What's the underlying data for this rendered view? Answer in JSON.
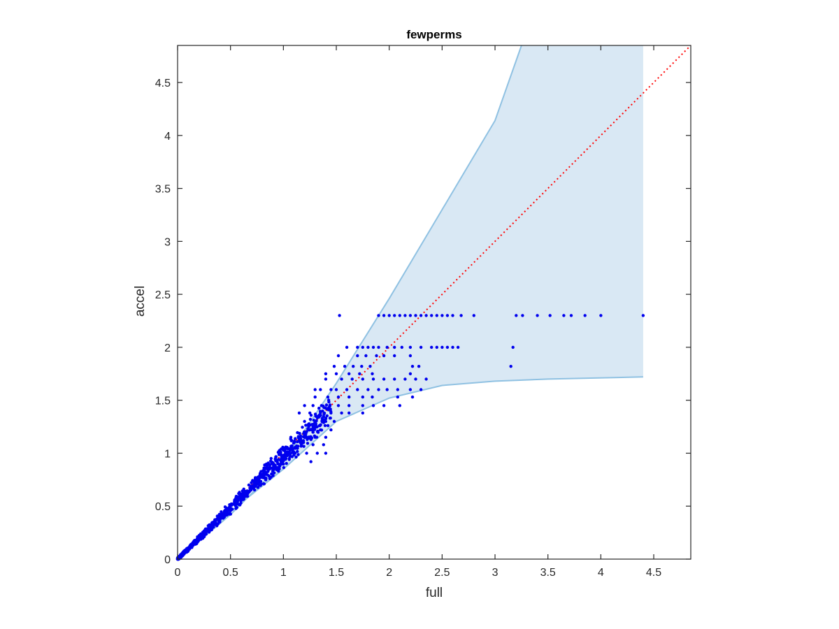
{
  "chart_data": {
    "type": "scatter",
    "title": "fewperms",
    "xlabel": "full",
    "ylabel": "accel",
    "xlim": [
      0,
      4.85
    ],
    "ylim": [
      0,
      4.85
    ],
    "xticks": [
      "0",
      "0.5",
      "1",
      "1.5",
      "2",
      "2.5",
      "3",
      "3.5",
      "4",
      "4.5"
    ],
    "yticks": [
      "0",
      "0.5",
      "1",
      "1.5",
      "2",
      "2.5",
      "3",
      "3.5",
      "4",
      "4.5"
    ],
    "grid": false,
    "colors": {
      "points": "#0000ee",
      "band_fill": "#d9e8f4",
      "band_edge": "#8fc1e2",
      "identity_line": "#ff0000",
      "axes": "#262626"
    },
    "identity_line": {
      "style": "dotted",
      "from": [
        0,
        0
      ],
      "to": [
        4.85,
        4.85
      ]
    },
    "band": {
      "upper": [
        [
          0,
          0
        ],
        [
          0.5,
          0.42
        ],
        [
          1,
          0.92
        ],
        [
          1.5,
          1.66
        ],
        [
          2,
          2.46
        ],
        [
          2.5,
          3.3
        ],
        [
          3,
          4.14
        ],
        [
          3.25,
          4.85
        ],
        [
          4.4,
          4.85
        ]
      ],
      "lower": [
        [
          0,
          0
        ],
        [
          0.5,
          0.45
        ],
        [
          1,
          0.85
        ],
        [
          1.5,
          1.3
        ],
        [
          2,
          1.52
        ],
        [
          2.5,
          1.64
        ],
        [
          3,
          1.68
        ],
        [
          3.5,
          1.7
        ],
        [
          4.4,
          1.72
        ]
      ]
    },
    "points_dense": {
      "x_max": 1.45,
      "count": 900
    },
    "points": [
      [
        1.53,
        2.3
      ],
      [
        1.9,
        2.3
      ],
      [
        1.95,
        2.3
      ],
      [
        2.0,
        2.3
      ],
      [
        2.05,
        2.3
      ],
      [
        2.1,
        2.3
      ],
      [
        2.15,
        2.3
      ],
      [
        2.2,
        2.3
      ],
      [
        2.25,
        2.3
      ],
      [
        2.3,
        2.3
      ],
      [
        2.35,
        2.3
      ],
      [
        2.4,
        2.3
      ],
      [
        2.45,
        2.3
      ],
      [
        2.5,
        2.3
      ],
      [
        2.55,
        2.3
      ],
      [
        2.6,
        2.3
      ],
      [
        2.68,
        2.3
      ],
      [
        2.8,
        2.3
      ],
      [
        3.2,
        2.3
      ],
      [
        3.26,
        2.3
      ],
      [
        3.4,
        2.3
      ],
      [
        3.52,
        2.3
      ],
      [
        3.65,
        2.3
      ],
      [
        3.72,
        2.3
      ],
      [
        3.85,
        2.3
      ],
      [
        4.0,
        2.3
      ],
      [
        4.4,
        2.3
      ],
      [
        1.6,
        2.0
      ],
      [
        1.7,
        2.0
      ],
      [
        1.75,
        2.0
      ],
      [
        1.8,
        2.0
      ],
      [
        1.85,
        2.0
      ],
      [
        1.9,
        2.0
      ],
      [
        1.98,
        2.0
      ],
      [
        2.05,
        2.0
      ],
      [
        2.12,
        2.0
      ],
      [
        2.2,
        2.0
      ],
      [
        2.3,
        2.0
      ],
      [
        2.4,
        2.0
      ],
      [
        2.45,
        2.0
      ],
      [
        2.5,
        2.0
      ],
      [
        2.55,
        2.0
      ],
      [
        2.6,
        2.0
      ],
      [
        2.65,
        2.0
      ],
      [
        3.17,
        2.0
      ],
      [
        1.52,
        1.92
      ],
      [
        1.7,
        1.92
      ],
      [
        1.78,
        1.92
      ],
      [
        1.88,
        1.92
      ],
      [
        1.95,
        1.92
      ],
      [
        2.05,
        1.92
      ],
      [
        2.2,
        1.92
      ],
      [
        1.48,
        1.82
      ],
      [
        1.58,
        1.82
      ],
      [
        1.66,
        1.82
      ],
      [
        1.74,
        1.82
      ],
      [
        1.82,
        1.82
      ],
      [
        2.22,
        1.82
      ],
      [
        2.28,
        1.82
      ],
      [
        3.15,
        1.82
      ],
      [
        1.4,
        1.75
      ],
      [
        1.5,
        1.75
      ],
      [
        1.62,
        1.75
      ],
      [
        1.72,
        1.75
      ],
      [
        1.84,
        1.75
      ],
      [
        2.2,
        1.75
      ],
      [
        1.4,
        1.7
      ],
      [
        1.55,
        1.7
      ],
      [
        1.65,
        1.7
      ],
      [
        1.75,
        1.7
      ],
      [
        1.85,
        1.7
      ],
      [
        1.95,
        1.7
      ],
      [
        2.05,
        1.7
      ],
      [
        2.15,
        1.7
      ],
      [
        2.25,
        1.7
      ],
      [
        2.35,
        1.7
      ],
      [
        1.3,
        1.6
      ],
      [
        1.35,
        1.6
      ],
      [
        1.45,
        1.6
      ],
      [
        1.5,
        1.6
      ],
      [
        1.6,
        1.6
      ],
      [
        1.7,
        1.6
      ],
      [
        1.8,
        1.6
      ],
      [
        1.9,
        1.6
      ],
      [
        1.98,
        1.6
      ],
      [
        2.08,
        1.6
      ],
      [
        2.2,
        1.6
      ],
      [
        2.3,
        1.6
      ],
      [
        1.3,
        1.53
      ],
      [
        1.42,
        1.53
      ],
      [
        1.52,
        1.53
      ],
      [
        1.62,
        1.53
      ],
      [
        1.75,
        1.53
      ],
      [
        1.84,
        1.53
      ],
      [
        2.08,
        1.53
      ],
      [
        2.22,
        1.53
      ],
      [
        1.2,
        1.45
      ],
      [
        1.28,
        1.45
      ],
      [
        1.36,
        1.45
      ],
      [
        1.44,
        1.45
      ],
      [
        1.52,
        1.45
      ],
      [
        1.62,
        1.45
      ],
      [
        1.75,
        1.45
      ],
      [
        1.85,
        1.45
      ],
      [
        1.95,
        1.45
      ],
      [
        2.1,
        1.45
      ],
      [
        1.15,
        1.38
      ],
      [
        1.25,
        1.38
      ],
      [
        1.35,
        1.38
      ],
      [
        1.45,
        1.38
      ],
      [
        1.55,
        1.38
      ],
      [
        1.62,
        1.38
      ],
      [
        1.75,
        1.38
      ],
      [
        1.2,
        1.3
      ],
      [
        1.3,
        1.3
      ],
      [
        1.4,
        1.3
      ],
      [
        1.48,
        1.3
      ],
      [
        1.25,
        1.22
      ],
      [
        1.35,
        1.22
      ],
      [
        1.45,
        1.22
      ],
      [
        1.3,
        1.15
      ],
      [
        1.4,
        1.15
      ],
      [
        1.28,
        1.08
      ],
      [
        1.38,
        1.08
      ],
      [
        1.22,
        1.0
      ],
      [
        1.32,
        1.0
      ],
      [
        1.4,
        1.0
      ],
      [
        1.26,
        0.92
      ]
    ]
  }
}
